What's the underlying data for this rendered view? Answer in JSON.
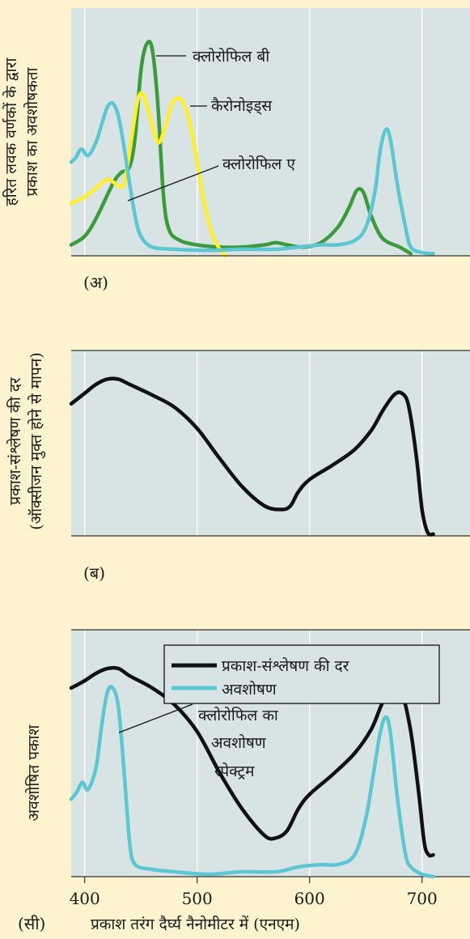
{
  "colors": {
    "plot_bg": "#d8e4e4",
    "grid": "#ffffff",
    "chlorophyll_b": "#3a9a3c",
    "carotenoids": "#ffef2a",
    "chlorophyll_a": "#5cc6d3",
    "photosynthesis_rate": "#111111",
    "absorption": "#5cc6d3"
  },
  "chart_data": [
    {
      "type": "line",
      "panel_label": "(अ)",
      "ylabel_line1": "हरित लवक वर्णकों के द्वारा",
      "ylabel_line2": "प्रकाश का अवशोषकता",
      "xlim": [
        388,
        760
      ],
      "ylim": [
        0,
        1
      ],
      "grid": true,
      "series": [
        {
          "name": "क्लोरोफिल बी",
          "color_key": "chlorophyll_b",
          "points": [
            [
              388,
              0.05
            ],
            [
              400,
              0.09
            ],
            [
              410,
              0.17
            ],
            [
              425,
              0.33
            ],
            [
              432,
              0.38
            ],
            [
              440,
              0.41
            ],
            [
              445,
              0.55
            ],
            [
              450,
              0.85
            ],
            [
              455,
              0.97
            ],
            [
              460,
              0.95
            ],
            [
              465,
              0.7
            ],
            [
              470,
              0.28
            ],
            [
              475,
              0.12
            ],
            [
              485,
              0.07
            ],
            [
              500,
              0.05
            ],
            [
              520,
              0.04
            ],
            [
              540,
              0.04
            ],
            [
              560,
              0.05
            ],
            [
              570,
              0.06
            ],
            [
              580,
              0.05
            ],
            [
              595,
              0.04
            ],
            [
              610,
              0.06
            ],
            [
              625,
              0.13
            ],
            [
              635,
              0.22
            ],
            [
              642,
              0.3
            ],
            [
              648,
              0.29
            ],
            [
              655,
              0.18
            ],
            [
              665,
              0.08
            ],
            [
              680,
              0.04
            ],
            [
              690,
              0.01
            ]
          ]
        },
        {
          "name": "कैरोनोइड्स",
          "color_key": "carotenoids",
          "points": [
            [
              388,
              0.24
            ],
            [
              400,
              0.27
            ],
            [
              410,
              0.31
            ],
            [
              420,
              0.35
            ],
            [
              425,
              0.34
            ],
            [
              430,
              0.32
            ],
            [
              435,
              0.33
            ],
            [
              440,
              0.48
            ],
            [
              447,
              0.71
            ],
            [
              452,
              0.74
            ],
            [
              458,
              0.64
            ],
            [
              465,
              0.52
            ],
            [
              471,
              0.58
            ],
            [
              478,
              0.7
            ],
            [
              485,
              0.72
            ],
            [
              492,
              0.64
            ],
            [
              498,
              0.49
            ],
            [
              505,
              0.28
            ],
            [
              512,
              0.12
            ],
            [
              520,
              0.03
            ],
            [
              525,
              0.0
            ]
          ]
        },
        {
          "name": "क्लोरोफिल ए",
          "color_key": "chlorophyll_a",
          "points": [
            [
              388,
              0.43
            ],
            [
              392,
              0.45
            ],
            [
              397,
              0.49
            ],
            [
              403,
              0.46
            ],
            [
              410,
              0.52
            ],
            [
              415,
              0.6
            ],
            [
              420,
              0.68
            ],
            [
              425,
              0.7
            ],
            [
              430,
              0.64
            ],
            [
              435,
              0.5
            ],
            [
              440,
              0.33
            ],
            [
              445,
              0.18
            ],
            [
              450,
              0.09
            ],
            [
              460,
              0.04
            ],
            [
              480,
              0.03
            ],
            [
              510,
              0.025
            ],
            [
              540,
              0.03
            ],
            [
              570,
              0.03
            ],
            [
              590,
              0.04
            ],
            [
              610,
              0.05
            ],
            [
              625,
              0.05
            ],
            [
              640,
              0.07
            ],
            [
              650,
              0.13
            ],
            [
              658,
              0.29
            ],
            [
              663,
              0.49
            ],
            [
              668,
              0.58
            ],
            [
              672,
              0.53
            ],
            [
              678,
              0.33
            ],
            [
              685,
              0.14
            ],
            [
              690,
              0.04
            ],
            [
              700,
              0.015
            ],
            [
              710,
              0.01
            ]
          ]
        }
      ],
      "annotations": [
        "क्लोरोफिल बी",
        "कैरोनोइड्स",
        "क्लोरोफिल ए"
      ]
    },
    {
      "type": "line",
      "panel_label": "(ब)",
      "ylabel_line1": "प्रकाश-संश्लेषण की दर",
      "ylabel_line2": "(ऑक्सीजन मुक्त होने से मापन)",
      "xlim": [
        388,
        760
      ],
      "ylim": [
        0,
        1
      ],
      "grid": true,
      "series": [
        {
          "name": "",
          "color_key": "photosynthesis_rate",
          "points": [
            [
              388,
              0.75
            ],
            [
              400,
              0.81
            ],
            [
              410,
              0.86
            ],
            [
              420,
              0.89
            ],
            [
              430,
              0.89
            ],
            [
              440,
              0.86
            ],
            [
              460,
              0.8
            ],
            [
              480,
              0.73
            ],
            [
              500,
              0.61
            ],
            [
              520,
              0.44
            ],
            [
              540,
              0.28
            ],
            [
              560,
              0.17
            ],
            [
              575,
              0.15
            ],
            [
              583,
              0.17
            ],
            [
              590,
              0.25
            ],
            [
              600,
              0.32
            ],
            [
              620,
              0.4
            ],
            [
              640,
              0.49
            ],
            [
              655,
              0.6
            ],
            [
              665,
              0.71
            ],
            [
              675,
              0.8
            ],
            [
              682,
              0.81
            ],
            [
              688,
              0.74
            ],
            [
              695,
              0.45
            ],
            [
              700,
              0.15
            ],
            [
              705,
              0.02
            ],
            [
              710,
              0.01
            ]
          ]
        }
      ]
    },
    {
      "type": "line",
      "panel_label": "(सी)",
      "ylabel": "अवशोषित पकाश",
      "xlabel": "प्रकाश तरंग दैर्घ्य नैनोमीटर में (एनएम)",
      "x_ticks": [
        400,
        500,
        600,
        700
      ],
      "xlim": [
        388,
        760
      ],
      "ylim": [
        0,
        1
      ],
      "grid": true,
      "legend": {
        "placement": "top",
        "entries": [
          {
            "label": "प्रकाश-संश्लेषण की दर",
            "color_key": "photosynthesis_rate"
          },
          {
            "label": "अवशोषण",
            "color_key": "absorption"
          }
        ]
      },
      "annotation": {
        "line1": "क्लोरोफिल का",
        "line2": "अवशोषण",
        "line3": "स्पेक्ट्रम"
      },
      "series": [
        {
          "name": "प्रकाश-संश्लेषण की दर",
          "color_key": "photosynthesis_rate",
          "points": [
            [
              388,
              0.78
            ],
            [
              400,
              0.81
            ],
            [
              410,
              0.84
            ],
            [
              420,
              0.86
            ],
            [
              430,
              0.86
            ],
            [
              440,
              0.83
            ],
            [
              460,
              0.78
            ],
            [
              480,
              0.71
            ],
            [
              500,
              0.6
            ],
            [
              520,
              0.43
            ],
            [
              540,
              0.28
            ],
            [
              560,
              0.17
            ],
            [
              570,
              0.16
            ],
            [
              580,
              0.19
            ],
            [
              590,
              0.28
            ],
            [
              600,
              0.34
            ],
            [
              620,
              0.42
            ],
            [
              640,
              0.51
            ],
            [
              655,
              0.61
            ],
            [
              665,
              0.72
            ],
            [
              675,
              0.78
            ],
            [
              682,
              0.76
            ],
            [
              690,
              0.6
            ],
            [
              697,
              0.35
            ],
            [
              702,
              0.14
            ],
            [
              706,
              0.09
            ],
            [
              710,
              0.09
            ]
          ]
        },
        {
          "name": "अवशोषण",
          "color_key": "absorption",
          "points": [
            [
              388,
              0.32
            ],
            [
              393,
              0.35
            ],
            [
              398,
              0.39
            ],
            [
              403,
              0.36
            ],
            [
              410,
              0.45
            ],
            [
              415,
              0.62
            ],
            [
              420,
              0.76
            ],
            [
              425,
              0.78
            ],
            [
              430,
              0.7
            ],
            [
              435,
              0.44
            ],
            [
              440,
              0.14
            ],
            [
              445,
              0.05
            ],
            [
              460,
              0.03
            ],
            [
              480,
              0.02
            ],
            [
              510,
              0.01
            ],
            [
              540,
              0.02
            ],
            [
              570,
              0.02
            ],
            [
              590,
              0.04
            ],
            [
              610,
              0.05
            ],
            [
              625,
              0.05
            ],
            [
              640,
              0.09
            ],
            [
              650,
              0.24
            ],
            [
              658,
              0.46
            ],
            [
              663,
              0.6
            ],
            [
              668,
              0.66
            ],
            [
              672,
              0.59
            ],
            [
              678,
              0.33
            ],
            [
              685,
              0.1
            ],
            [
              690,
              0.04
            ],
            [
              700,
              0.01
            ],
            [
              710,
              0.0
            ]
          ]
        }
      ]
    }
  ]
}
